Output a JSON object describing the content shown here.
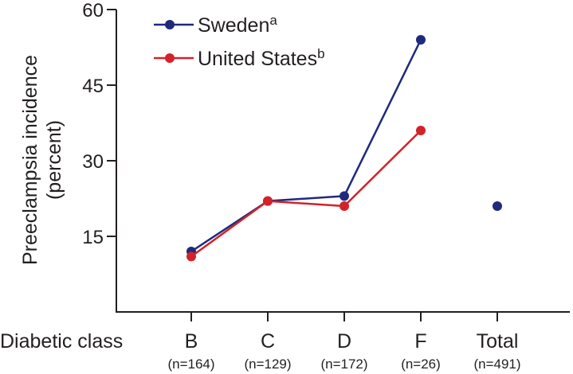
{
  "chart_data": {
    "type": "line",
    "ylabel_line1": "Preeclampsia incidence",
    "ylabel_line2": "(percent)",
    "xlabel": "Diabetic class",
    "categories": [
      "B",
      "C",
      "D",
      "F",
      "Total"
    ],
    "category_counts": [
      "(n=164)",
      "(n=129)",
      "(n=172)",
      "(n=26)",
      "(n=491)"
    ],
    "ylim": [
      0,
      60
    ],
    "yticks": [
      15,
      30,
      45,
      60
    ],
    "grid": false,
    "legend_position": "top-left",
    "series": [
      {
        "name": "Sweden",
        "name_superscript": "a",
        "color": "#1f2a7c",
        "values": [
          12,
          22,
          23,
          54,
          null
        ],
        "total": 21
      },
      {
        "name": "United States",
        "name_superscript": "b",
        "color": "#d2232a",
        "values": [
          11,
          22,
          21,
          36,
          null
        ],
        "total": null
      }
    ]
  }
}
